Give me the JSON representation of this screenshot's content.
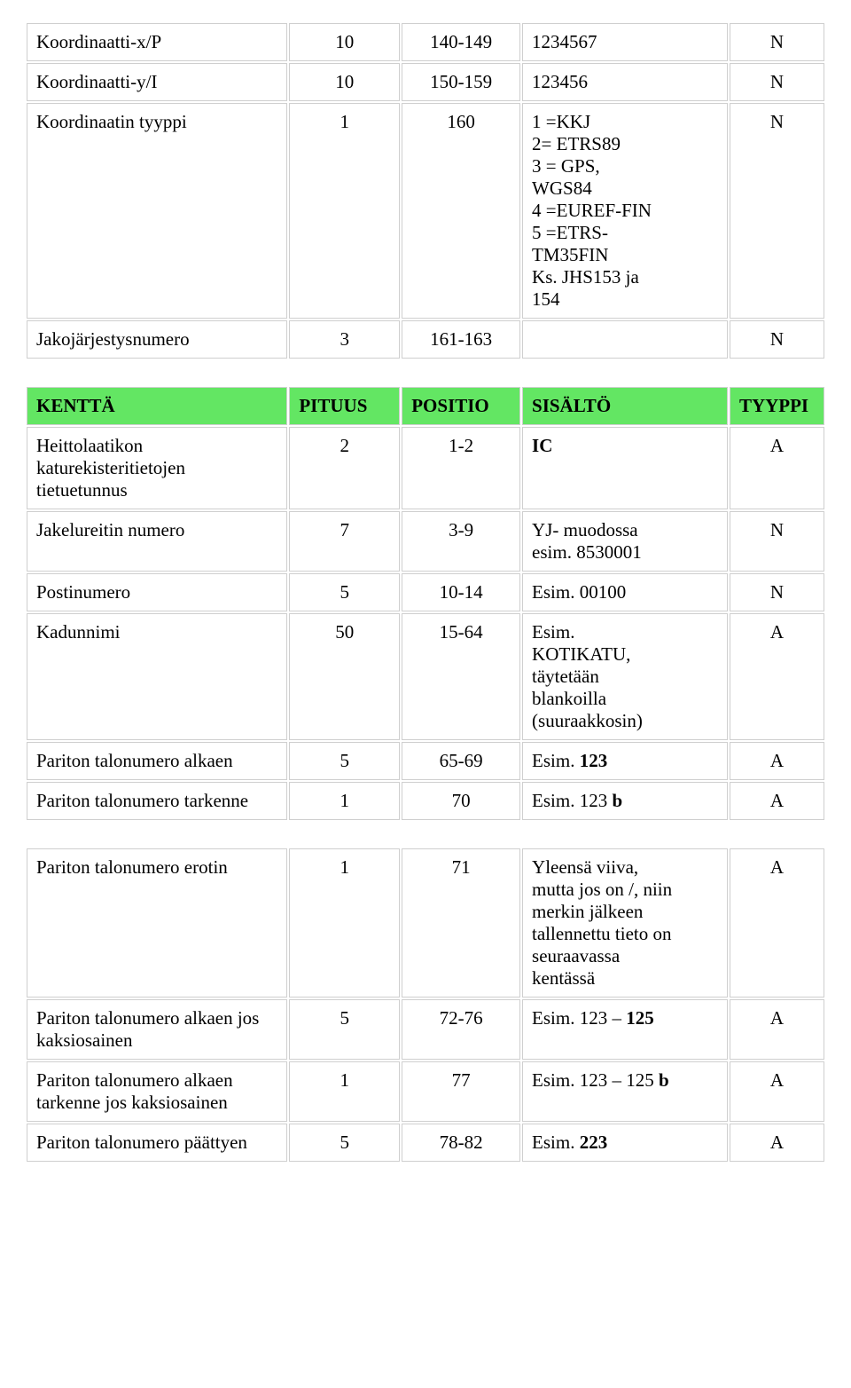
{
  "table1": {
    "rows": [
      {
        "label": "Koordinaatti-x/P",
        "pituus": "10",
        "positio": "140-149",
        "sisalto": [
          {
            "t": "1234567"
          }
        ],
        "tyyppi": "N"
      },
      {
        "label": "Koordinaatti-y/I",
        "pituus": "10",
        "positio": "150-159",
        "sisalto": [
          {
            "t": "123456"
          }
        ],
        "tyyppi": "N"
      },
      {
        "label": "Koordinaatin tyyppi",
        "pituus": "1",
        "positio": "160",
        "sisalto": [
          {
            "t": "1 =KKJ"
          },
          {
            "br": true
          },
          {
            "t": "2= ETRS89"
          },
          {
            "br": true
          },
          {
            "t": "3 = GPS,"
          },
          {
            "br": true
          },
          {
            "t": "WGS84"
          },
          {
            "br": true
          },
          {
            "t": "4 =EUREF-FIN"
          },
          {
            "br": true
          },
          {
            "t": "5 =ETRS-"
          },
          {
            "br": true
          },
          {
            "t": "TM35FIN"
          },
          {
            "br": true
          },
          {
            "t": "Ks. JHS153 ja"
          },
          {
            "br": true
          },
          {
            "t": "154"
          }
        ],
        "tyyppi": "N"
      },
      {
        "label": "Jakojärjestysnumero",
        "pituus": "3",
        "positio": "161-163",
        "sisalto": [],
        "tyyppi": "N"
      }
    ]
  },
  "table2": {
    "header": {
      "c0": "KENTTÄ",
      "c1": "PITUUS",
      "c2": "POSITIO",
      "c3": "SISÄLTÖ",
      "c4": "TYYPPI"
    },
    "rows": [
      {
        "label": "Heittolaatikon katurekisteritietojen tietuetunnus",
        "pituus": "2",
        "positio": "1-2",
        "sisalto": [
          {
            "t": "IC",
            "b": true
          }
        ],
        "tyyppi": "A"
      },
      {
        "label": "Jakelureitin numero",
        "pituus": "7",
        "positio": "3-9",
        "sisalto": [
          {
            "t": "YJ- muodossa"
          },
          {
            "br": true
          },
          {
            "t": "esim. 8530001"
          }
        ],
        "tyyppi": "N"
      },
      {
        "label": "Postinumero",
        "pituus": "5",
        "positio": "10-14",
        "sisalto": [
          {
            "t": "Esim. 00100"
          }
        ],
        "tyyppi": "N"
      },
      {
        "label": "Kadunnimi",
        "pituus": "50",
        "positio": "15-64",
        "sisalto": [
          {
            "t": "Esim."
          },
          {
            "br": true
          },
          {
            "t": "KOTIKATU,"
          },
          {
            "br": true
          },
          {
            "t": "täytetään"
          },
          {
            "br": true
          },
          {
            "t": "blankoilla"
          },
          {
            "br": true
          },
          {
            "t": "(suuraakkosin)"
          }
        ],
        "tyyppi": "A"
      },
      {
        "label": "Pariton talonumero alkaen",
        "pituus": "5",
        "positio": "65-69",
        "sisalto": [
          {
            "t": "Esim. "
          },
          {
            "t": "123",
            "b": true
          }
        ],
        "tyyppi": "A"
      },
      {
        "label": "Pariton talonumero tarkenne",
        "pituus": "1",
        "positio": "70",
        "sisalto": [
          {
            "t": "Esim. 123 "
          },
          {
            "t": "b",
            "b": true
          }
        ],
        "tyyppi": "A"
      }
    ]
  },
  "table3": {
    "rows": [
      {
        "label": "Pariton talonumero erotin",
        "pituus": "1",
        "positio": "71",
        "sisalto": [
          {
            "t": "Yleensä viiva,"
          },
          {
            "br": true
          },
          {
            "t": "mutta jos on /, niin"
          },
          {
            "br": true
          },
          {
            "t": "merkin jälkeen"
          },
          {
            "br": true
          },
          {
            "t": "tallennettu tieto on"
          },
          {
            "br": true
          },
          {
            "t": "seuraavassa"
          },
          {
            "br": true
          },
          {
            "t": "kentässä"
          }
        ],
        "tyyppi": "A"
      },
      {
        "label": "Pariton talonumero alkaen jos kaksiosainen",
        "pituus": "5",
        "positio": "72-76",
        "sisalto": [
          {
            "t": "Esim. 123 – "
          },
          {
            "t": "125",
            "b": true
          }
        ],
        "tyyppi": "A"
      },
      {
        "label": "Pariton talonumero alkaen tarkenne jos kaksiosainen",
        "pituus": "1",
        "positio": "77",
        "sisalto": [
          {
            "t": "Esim. 123 – 125 "
          },
          {
            "t": "b",
            "b": true
          }
        ],
        "tyyppi": "A"
      },
      {
        "label": "Pariton talonumero päättyen",
        "pituus": "5",
        "positio": "78-82",
        "sisalto": [
          {
            "t": "Esim. "
          },
          {
            "t": "223",
            "b": true
          }
        ],
        "tyyppi": "A"
      }
    ]
  },
  "style": {
    "header_bg": "#63e663",
    "border_color": "#cfcfcf",
    "font_size": 21
  }
}
